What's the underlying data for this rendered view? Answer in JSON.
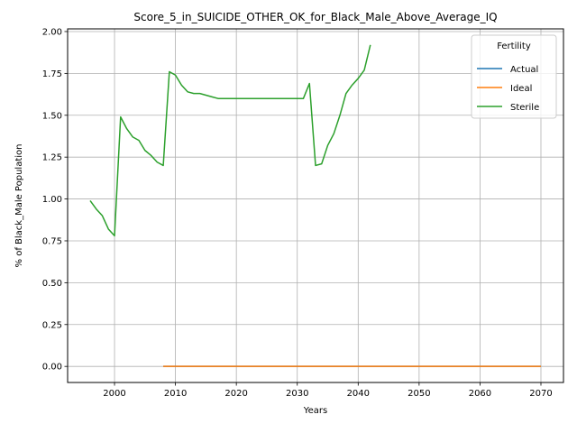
{
  "chart_data": {
    "type": "line",
    "title": "Score_5_in_SUICIDE_OTHER_OK_for_Black_Male_Above_Average_IQ",
    "xlabel": "Years",
    "ylabel": "% of Black_Male Population",
    "xlim": [
      1992.3,
      2073.7
    ],
    "ylim": [
      -0.096,
      2.016
    ],
    "xticks": [
      2000,
      2010,
      2020,
      2030,
      2040,
      2050,
      2060,
      2070
    ],
    "xtick_labels": [
      "2000",
      "2010",
      "2020",
      "2030",
      "2040",
      "2050",
      "2060",
      "2070"
    ],
    "yticks": [
      0.0,
      0.25,
      0.5,
      0.75,
      1.0,
      1.25,
      1.5,
      1.75,
      2.0
    ],
    "ytick_labels": [
      "0.00",
      "0.25",
      "0.50",
      "0.75",
      "1.00",
      "1.25",
      "1.50",
      "1.75",
      "2.00"
    ],
    "grid": true,
    "legend": {
      "title": "Fertility",
      "placement": "top-right"
    },
    "series": [
      {
        "name": "Actual",
        "color": "#1f77b4",
        "points": [
          [
            2008,
            0.0
          ],
          [
            2070,
            0.0
          ]
        ]
      },
      {
        "name": "Ideal",
        "color": "#ff7f0e",
        "points": [
          [
            2008,
            0.0
          ],
          [
            2070,
            0.0
          ]
        ]
      },
      {
        "name": "Sterile",
        "color": "#2ca02c",
        "points": [
          [
            1996,
            0.99
          ],
          [
            1997,
            0.94
          ],
          [
            1998,
            0.9
          ],
          [
            1999,
            0.82
          ],
          [
            2000,
            0.78
          ],
          [
            2001,
            1.49
          ],
          [
            2002,
            1.42
          ],
          [
            2003,
            1.37
          ],
          [
            2004,
            1.35
          ],
          [
            2005,
            1.29
          ],
          [
            2006,
            1.26
          ],
          [
            2007,
            1.22
          ],
          [
            2008,
            1.2
          ],
          [
            2009,
            1.76
          ],
          [
            2010,
            1.74
          ],
          [
            2011,
            1.68
          ],
          [
            2012,
            1.64
          ],
          [
            2013,
            1.63
          ],
          [
            2014,
            1.63
          ],
          [
            2015,
            1.62
          ],
          [
            2016,
            1.61
          ],
          [
            2017,
            1.6
          ],
          [
            2018,
            1.6
          ],
          [
            2019,
            1.6
          ],
          [
            2020,
            1.6
          ],
          [
            2021,
            1.6
          ],
          [
            2022,
            1.6
          ],
          [
            2023,
            1.6
          ],
          [
            2024,
            1.6
          ],
          [
            2025,
            1.6
          ],
          [
            2026,
            1.6
          ],
          [
            2027,
            1.6
          ],
          [
            2028,
            1.6
          ],
          [
            2029,
            1.6
          ],
          [
            2030,
            1.6
          ],
          [
            2031,
            1.6
          ],
          [
            2032,
            1.69
          ],
          [
            2033,
            1.2
          ],
          [
            2034,
            1.21
          ],
          [
            2035,
            1.32
          ],
          [
            2036,
            1.39
          ],
          [
            2037,
            1.5
          ],
          [
            2038,
            1.63
          ],
          [
            2039,
            1.68
          ],
          [
            2040,
            1.72
          ],
          [
            2041,
            1.77
          ],
          [
            2042,
            1.92
          ]
        ]
      }
    ]
  }
}
